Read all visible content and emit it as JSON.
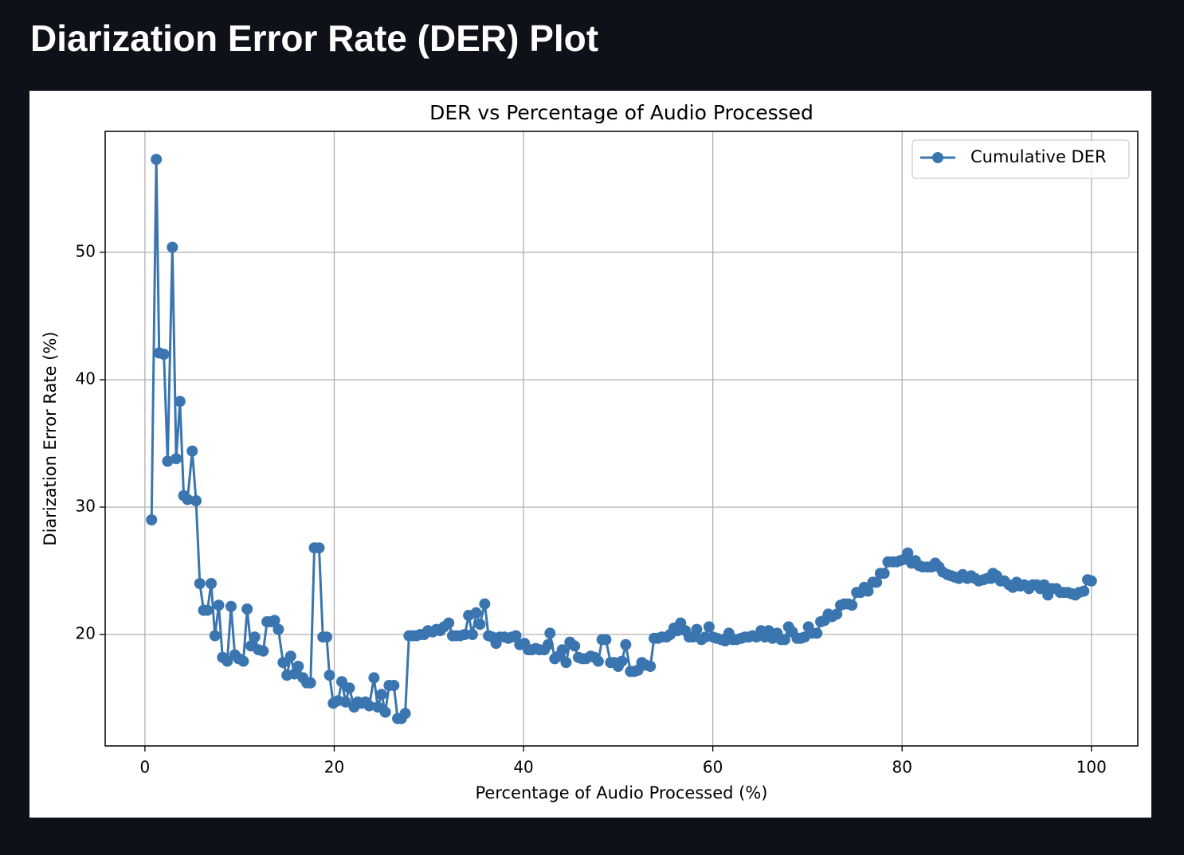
{
  "header": {
    "title": "Diarization Error Rate (DER) Plot"
  },
  "chart_data": {
    "type": "line",
    "title": "DER vs Percentage of Audio Processed",
    "x_label": "Percentage of Audio Processed (%)",
    "y_label": "Diarization Error Rate (%)",
    "xlim": [
      -4.2,
      104.9
    ],
    "ylim": [
      11.25,
      59.5
    ],
    "xticks": [
      0,
      20,
      40,
      60,
      80,
      100
    ],
    "yticks": [
      20,
      30,
      40,
      50
    ],
    "grid": true,
    "legend": "upper right",
    "x": [
      0.7,
      1.2,
      1.5,
      2.0,
      2.4,
      2.9,
      3.3,
      3.7,
      4.1,
      4.5,
      5.0,
      5.4,
      5.8,
      6.2,
      6.6,
      7.0,
      7.4,
      7.8,
      8.2,
      8.7,
      9.1,
      9.5,
      9.9,
      10.4,
      10.8,
      11.2,
      11.6,
      12.0,
      12.5,
      12.9,
      13.3,
      13.7,
      14.1,
      14.6,
      15.0,
      15.4,
      15.8,
      16.2,
      16.7,
      17.1,
      17.5,
      17.9,
      18.4,
      18.8,
      19.2,
      19.5,
      19.9,
      20.4,
      20.8,
      21.2,
      21.6,
      22.1,
      22.5,
      22.9,
      23.3,
      23.7,
      24.2,
      24.6,
      25.0,
      25.4,
      25.8,
      26.3,
      26.7,
      27.1,
      27.5,
      27.9,
      28.3,
      28.7,
      29.1,
      29.5,
      29.9,
      30.4,
      30.8,
      31.2,
      31.6,
      32.1,
      32.5,
      32.9,
      33.3,
      33.8,
      34.2,
      34.6,
      35.0,
      35.4,
      35.9,
      36.3,
      36.7,
      37.1,
      37.5,
      38.0,
      38.4,
      38.8,
      39.2,
      39.6,
      40.1,
      40.5,
      40.9,
      41.3,
      41.7,
      42.2,
      42.6,
      42.8,
      43.3,
      43.7,
      44.1,
      44.5,
      44.9,
      45.4,
      45.8,
      46.2,
      46.6,
      47.1,
      47.5,
      47.9,
      48.3,
      48.7,
      49.2,
      49.6,
      50.0,
      50.4,
      50.8,
      51.3,
      51.7,
      52.1,
      52.5,
      52.9,
      53.4,
      53.8,
      54.2,
      54.6,
      55.1,
      55.5,
      55.9,
      56.3,
      56.6,
      57.1,
      57.5,
      57.9,
      58.3,
      58.8,
      59.2,
      59.6,
      60.0,
      60.4,
      60.9,
      61.3,
      61.7,
      62.1,
      62.5,
      63.0,
      63.4,
      63.8,
      64.2,
      64.6,
      65.1,
      65.5,
      65.9,
      66.3,
      66.8,
      67.2,
      67.6,
      68.0,
      68.4,
      68.9,
      69.3,
      69.7,
      70.1,
      70.5,
      71.0,
      71.4,
      71.8,
      72.2,
      72.6,
      73.1,
      73.5,
      73.9,
      74.3,
      74.7,
      75.2,
      75.6,
      76.0,
      76.4,
      76.9,
      77.3,
      77.7,
      78.1,
      78.5,
      79.0,
      79.4,
      79.8,
      80.2,
      80.6,
      81.0,
      81.4,
      81.8,
      82.2,
      82.7,
      83.1,
      83.5,
      83.9,
      84.3,
      84.8,
      85.2,
      85.6,
      86.0,
      86.4,
      86.9,
      87.3,
      87.7,
      88.1,
      88.6,
      89.0,
      89.4,
      89.6,
      90.0,
      90.4,
      90.8,
      91.3,
      91.7,
      92.1,
      92.5,
      92.9,
      93.4,
      93.8,
      94.2,
      94.6,
      95.0,
      95.4,
      95.8,
      96.3,
      96.7,
      97.1,
      97.5,
      97.9,
      98.3,
      98.7,
      99.2,
      99.6,
      100.0
    ],
    "series": [
      {
        "name": "Cumulative DER",
        "color": "#3a75b0",
        "values": [
          29.0,
          57.3,
          42.1,
          42.0,
          33.6,
          50.4,
          33.8,
          38.3,
          30.9,
          30.6,
          34.4,
          30.5,
          24.0,
          21.9,
          21.9,
          24.0,
          19.9,
          22.3,
          18.2,
          17.9,
          22.2,
          18.4,
          18.1,
          17.9,
          22.0,
          19.1,
          19.8,
          18.8,
          18.7,
          21.0,
          21.0,
          21.1,
          20.4,
          17.8,
          16.8,
          18.3,
          16.9,
          17.5,
          16.6,
          16.2,
          16.2,
          26.8,
          26.8,
          19.8,
          19.8,
          16.8,
          14.6,
          14.8,
          16.3,
          14.7,
          15.8,
          14.3,
          14.7,
          14.6,
          14.7,
          14.4,
          16.6,
          14.3,
          15.3,
          13.9,
          16.0,
          16.0,
          13.4,
          13.4,
          13.8,
          19.9,
          19.9,
          19.9,
          20.0,
          20.0,
          20.3,
          20.2,
          20.4,
          20.3,
          20.6,
          20.9,
          19.9,
          19.9,
          19.9,
          20.0,
          21.5,
          20.0,
          21.7,
          20.8,
          22.4,
          19.9,
          19.8,
          19.3,
          19.8,
          19.8,
          19.7,
          19.8,
          19.9,
          19.2,
          19.3,
          18.8,
          18.8,
          18.9,
          18.8,
          18.8,
          19.2,
          20.1,
          18.1,
          18.3,
          18.8,
          17.8,
          19.4,
          19.1,
          18.2,
          18.1,
          18.1,
          18.3,
          18.2,
          17.9,
          19.6,
          19.6,
          17.8,
          17.8,
          17.5,
          17.9,
          19.2,
          17.1,
          17.1,
          17.2,
          17.8,
          17.6,
          17.5,
          19.7,
          19.7,
          19.8,
          19.8,
          20.0,
          20.5,
          20.3,
          20.9,
          20.3,
          19.8,
          19.8,
          20.4,
          19.6,
          19.8,
          20.6,
          19.8,
          19.7,
          19.6,
          19.5,
          20.1,
          19.6,
          19.6,
          19.7,
          19.8,
          19.8,
          19.9,
          19.8,
          20.3,
          19.8,
          20.3,
          19.7,
          20.1,
          19.6,
          19.6,
          20.6,
          20.2,
          19.7,
          19.7,
          19.8,
          20.6,
          20.1,
          20.1,
          21.0,
          21.1,
          21.6,
          21.4,
          21.6,
          22.3,
          22.4,
          22.4,
          22.3,
          23.3,
          23.3,
          23.7,
          23.4,
          24.1,
          24.1,
          24.8,
          24.8,
          25.7,
          25.7,
          25.7,
          25.8,
          25.9,
          26.4,
          25.6,
          25.8,
          25.4,
          25.3,
          25.3,
          25.3,
          25.6,
          25.3,
          24.9,
          24.7,
          24.6,
          24.5,
          24.4,
          24.7,
          24.4,
          24.6,
          24.4,
          24.2,
          24.3,
          24.4,
          24.4,
          24.8,
          24.6,
          24.2,
          24.2,
          23.9,
          23.7,
          24.1,
          23.8,
          23.9,
          23.6,
          23.9,
          23.9,
          23.6,
          23.9,
          23.1,
          23.6,
          23.6,
          23.3,
          23.3,
          23.3,
          23.2,
          23.1,
          23.3,
          23.4,
          24.3,
          24.2
        ]
      }
    ]
  }
}
